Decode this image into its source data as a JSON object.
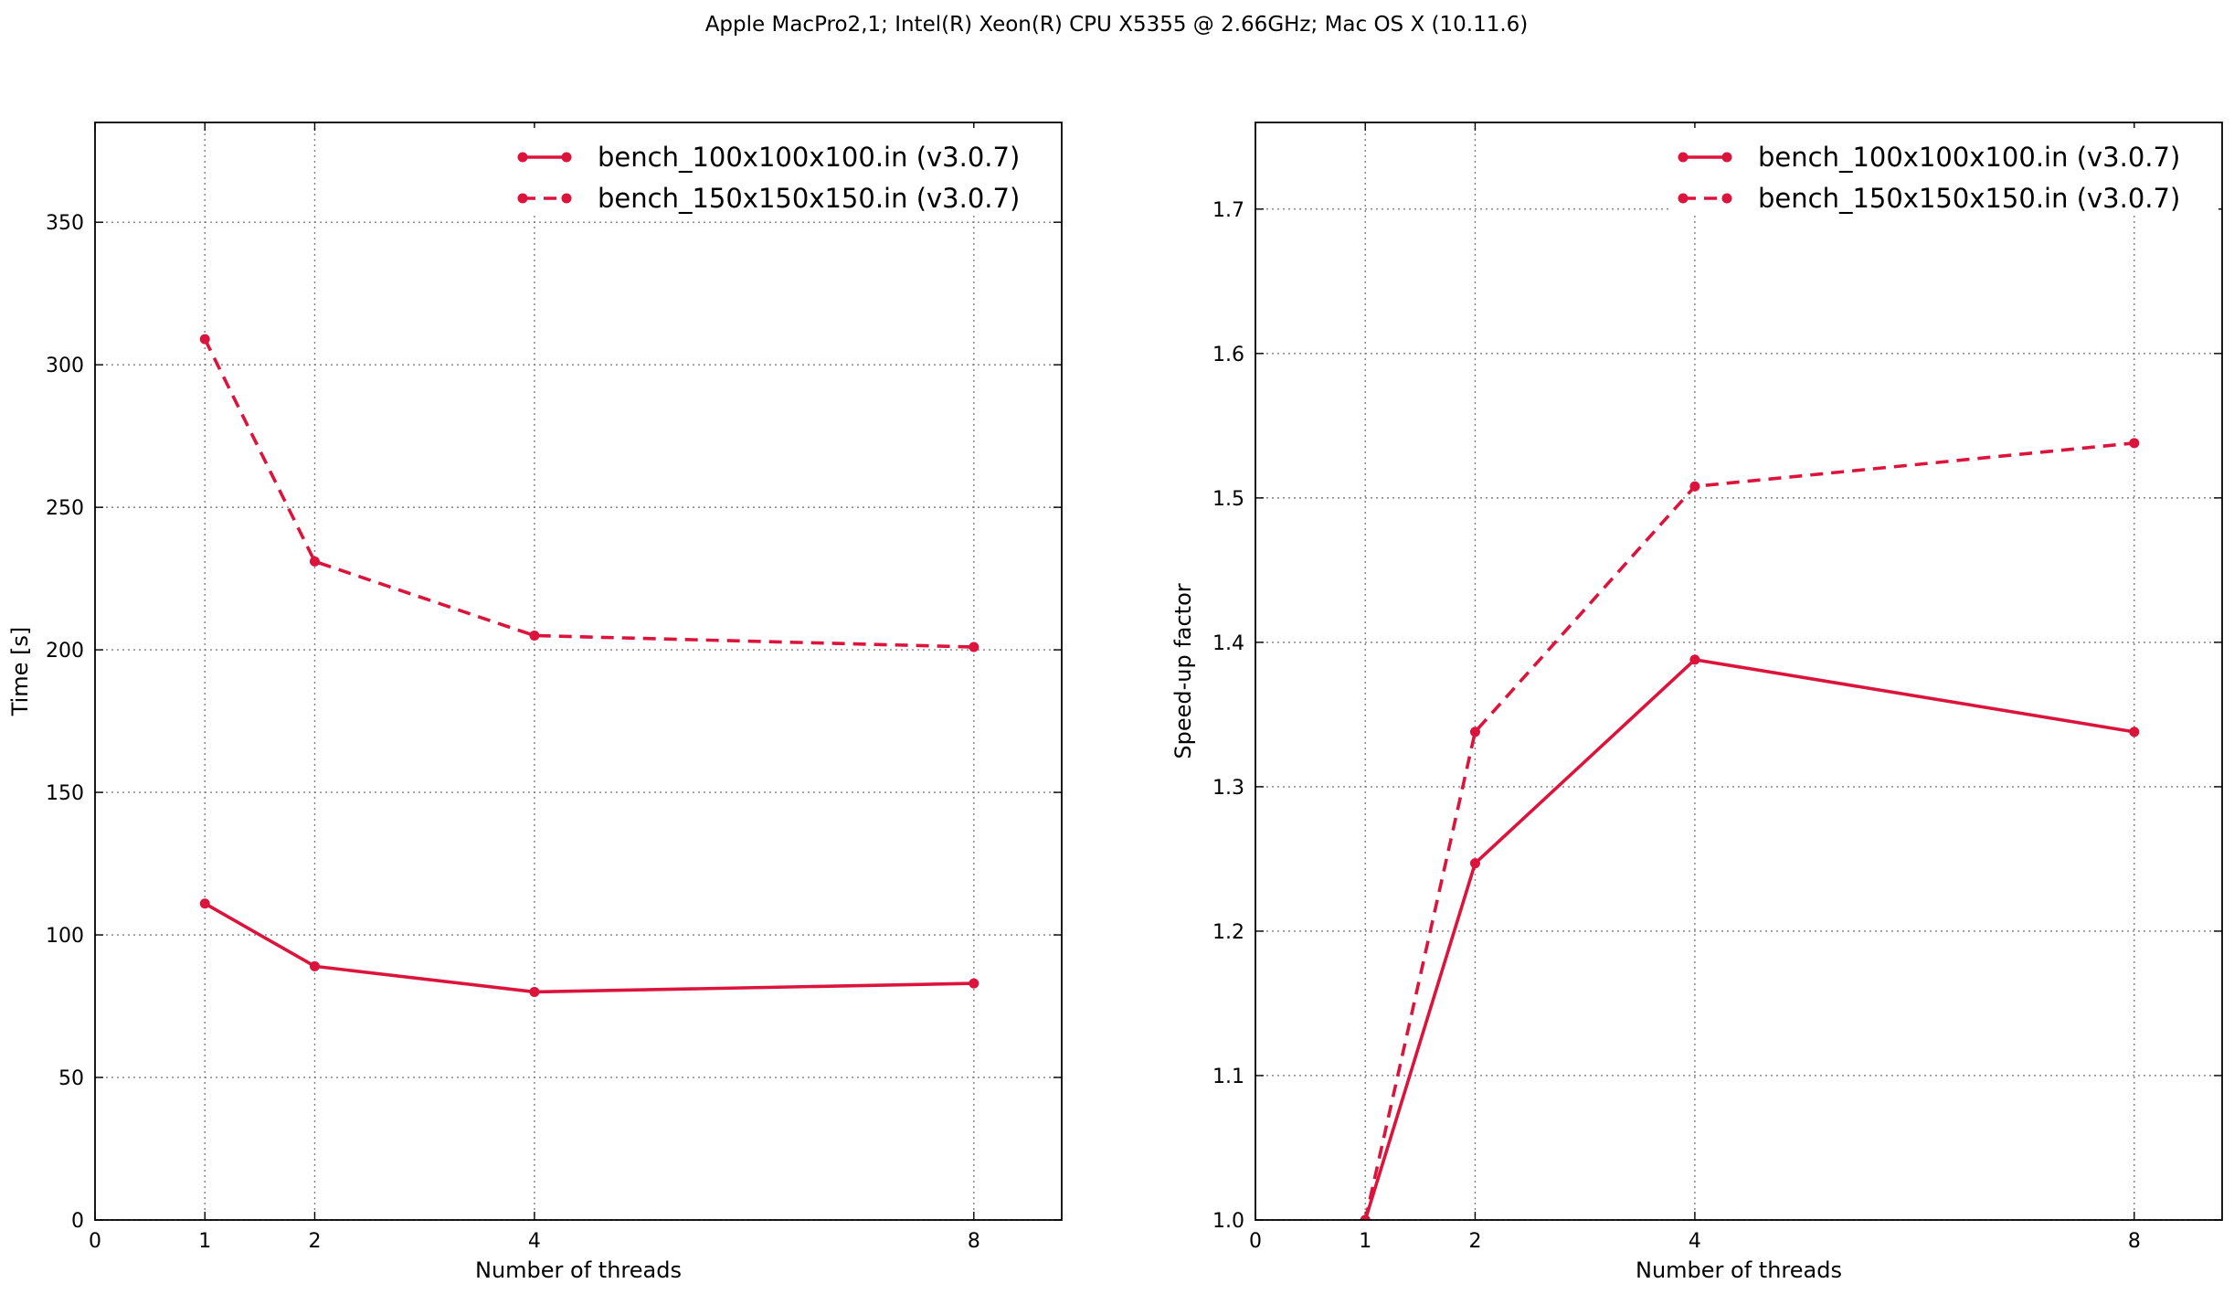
{
  "figure": {
    "suptitle": "Apple MacPro2,1; Intel(R) Xeon(R) CPU X5355 @ 2.66GHz; Mac OS X (10.11.6)"
  },
  "colors": {
    "series": "#dc143c",
    "grid": "#7f7f7f",
    "axes": "#000000"
  },
  "chart_data": [
    {
      "type": "line",
      "title": "",
      "xlabel": "Number of threads",
      "ylabel": "Time [s]",
      "xlim": [
        0,
        8.8
      ],
      "ylim": [
        0,
        385
      ],
      "xticks": [
        0,
        1,
        2,
        4,
        8
      ],
      "yticks": [
        0,
        50,
        100,
        150,
        200,
        250,
        300,
        350
      ],
      "x_gridlines": [
        1,
        2,
        4,
        8
      ],
      "grid": true,
      "legend": "upper right",
      "x": [
        1,
        2,
        4,
        8
      ],
      "series": [
        {
          "name": "bench_100x100x100.in (v3.0.7)",
          "style": "solid",
          "values": [
            111,
            89,
            80,
            83
          ]
        },
        {
          "name": "bench_150x150x150.in (v3.0.7)",
          "style": "dashed",
          "values": [
            309,
            231,
            205,
            201
          ]
        }
      ]
    },
    {
      "type": "line",
      "title": "",
      "xlabel": "Number of threads",
      "ylabel": "Speed-up factor",
      "xlim": [
        0,
        8.8
      ],
      "ylim": [
        1.0,
        1.76
      ],
      "xticks": [
        0,
        1,
        2,
        4,
        8
      ],
      "yticks": [
        1.0,
        1.1,
        1.2,
        1.3,
        1.4,
        1.5,
        1.6,
        1.7
      ],
      "x_gridlines": [
        1,
        2,
        4,
        8
      ],
      "grid": true,
      "legend": "upper right",
      "x": [
        1,
        2,
        4,
        8
      ],
      "series": [
        {
          "name": "bench_100x100x100.in (v3.0.7)",
          "style": "solid",
          "values": [
            1.0,
            1.247,
            1.388,
            1.338
          ]
        },
        {
          "name": "bench_150x150x150.in (v3.0.7)",
          "style": "dashed",
          "values": [
            1.0,
            1.338,
            1.508,
            1.538
          ]
        }
      ]
    }
  ]
}
